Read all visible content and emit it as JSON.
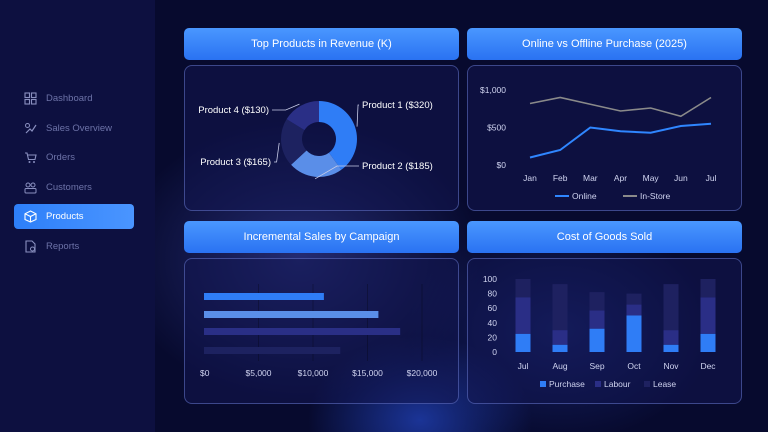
{
  "sidebar": {
    "items": [
      {
        "label": "Dashboard",
        "icon": "grid-icon",
        "active": false
      },
      {
        "label": "Sales Overview",
        "icon": "sales-icon",
        "active": false
      },
      {
        "label": "Orders",
        "icon": "cart-icon",
        "active": false
      },
      {
        "label": "Customers",
        "icon": "users-icon",
        "active": false
      },
      {
        "label": "Products",
        "icon": "box-icon",
        "active": true
      },
      {
        "label": "Reports",
        "icon": "report-icon",
        "active": false
      }
    ]
  },
  "colors": {
    "accent": "#2d7ff9",
    "purchase": "#2f7df6",
    "labour": "#2a2e86",
    "lease": "#1e2160",
    "online": "#2f86ff",
    "instore": "#8a8a8a"
  },
  "panels": {
    "top_products": {
      "title": "Top Products in Revenue (K)"
    },
    "online_offline": {
      "title": "Online vs Offline Purchase (2025)"
    },
    "incremental": {
      "title": "Incremental Sales by Campaign"
    },
    "cogs": {
      "title": "Cost of Goods Sold"
    }
  },
  "chart_data": [
    {
      "type": "pie",
      "title": "Top Products in Revenue (K)",
      "categories": [
        "Product 1",
        "Product 2",
        "Product 3",
        "Product 4"
      ],
      "values": [
        320,
        185,
        165,
        130
      ],
      "labels": [
        "Product 1 ($320)",
        "Product 2 ($185)",
        "Product 3 ($165)",
        "Product 4 ($130)"
      ],
      "colors": [
        "#2f7df6",
        "#5a8ee8",
        "#1d2260",
        "#2a2f86"
      ]
    },
    {
      "type": "line",
      "title": "Online vs Offline Purchase (2025)",
      "x": [
        "Jan",
        "Feb",
        "Mar",
        "Apr",
        "May",
        "Jun",
        "Jul"
      ],
      "ytick_labels": [
        "$0",
        "$500",
        "$1,000"
      ],
      "yticks": [
        0,
        500,
        1000
      ],
      "ylim": [
        0,
        1000
      ],
      "series": [
        {
          "name": "Online",
          "values": [
            100,
            200,
            500,
            450,
            430,
            520,
            550
          ]
        },
        {
          "name": "In-Store",
          "values": [
            820,
            900,
            810,
            720,
            760,
            650,
            900
          ]
        }
      ],
      "legend": "bottom",
      "grid": false
    },
    {
      "type": "bar",
      "orientation": "horizontal",
      "title": "Incremental Sales by Campaign",
      "values": [
        11000,
        16000,
        18000,
        12500
      ],
      "colors": [
        "#2f7df6",
        "#5a8ee8",
        "#2a2f86",
        "#1d2260"
      ],
      "xtick_labels": [
        "$0",
        "$5,000",
        "$10,000",
        "$15,000",
        "$20,000"
      ],
      "xticks": [
        0,
        5000,
        10000,
        15000,
        20000
      ],
      "xlim": [
        0,
        20000
      ],
      "grid": true
    },
    {
      "type": "bar",
      "stacked": true,
      "title": "Cost of Goods Sold",
      "categories": [
        "Jul",
        "Aug",
        "Sep",
        "Oct",
        "Nov",
        "Dec"
      ],
      "ytick_labels": [
        "0",
        "20",
        "40",
        "60",
        "80",
        "100"
      ],
      "yticks": [
        0,
        20,
        40,
        60,
        80,
        100
      ],
      "ylim": [
        0,
        100
      ],
      "series": [
        {
          "name": "Purchase",
          "values": [
            25,
            10,
            32,
            50,
            10,
            25
          ]
        },
        {
          "name": "Labour",
          "values": [
            50,
            20,
            25,
            15,
            20,
            50
          ]
        },
        {
          "name": "Lease",
          "values": [
            25,
            63,
            25,
            15,
            63,
            25
          ]
        }
      ],
      "legend": "bottom",
      "grid": false
    }
  ]
}
